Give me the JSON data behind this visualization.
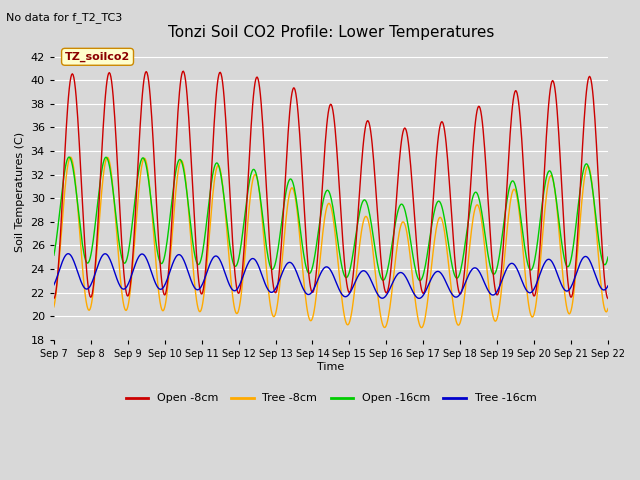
{
  "title": "Tonzi Soil CO2 Profile: Lower Temperatures",
  "subtitle": "No data for f_T2_TC3",
  "ylabel": "Soil Temperatures (C)",
  "xlabel": "Time",
  "annotation": "TZ_soilco2",
  "ylim": [
    18,
    43
  ],
  "yticks": [
    18,
    20,
    22,
    24,
    26,
    28,
    30,
    32,
    34,
    36,
    38,
    40,
    42
  ],
  "num_points": 720,
  "bg_color": "#d8d8d8",
  "plot_bg_color": "#d8d8d8",
  "grid_color": "#ffffff",
  "tick_labels": [
    "Sep 7",
    "Sep 8",
    "Sep 9",
    "Sep 10",
    "Sep 11",
    "Sep 12",
    "Sep 13",
    "Sep 14",
    "Sep 15",
    "Sep 16",
    "Sep 17",
    "Sep 18",
    "Sep 19",
    "Sep 20",
    "Sep 21",
    "Sep 22"
  ],
  "open_8cm_color": "#cc0000",
  "tree_8cm_color": "#ffaa00",
  "open_16cm_color": "#00cc00",
  "tree_16cm_color": "#0000cc",
  "legend_labels": [
    "Open -8cm",
    "Tree -8cm",
    "Open -16cm",
    "Tree -16cm"
  ]
}
